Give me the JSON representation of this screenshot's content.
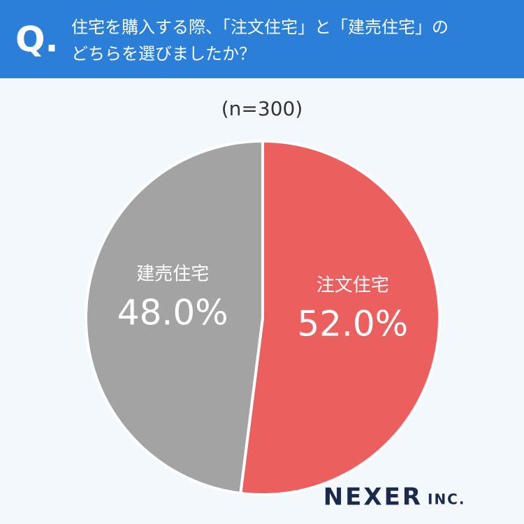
{
  "header": {
    "mark": "Q."
  },
  "chart_data": {
    "type": "pie",
    "title": [
      "住宅を購入する際、「注文住宅」と「建売住宅」の",
      "どちらを選びましたか？"
    ],
    "subtitle": "(n=300)",
    "categories": [
      "注文住宅",
      "建売住宅"
    ],
    "values": [
      52.0,
      48.0
    ],
    "value_labels": [
      "52.0%",
      "48.0%"
    ],
    "colors": [
      "#ec5f5f",
      "#a3a3a3"
    ]
  },
  "footer": {
    "logo": "NEXER",
    "logo_suffix": "INC."
  }
}
